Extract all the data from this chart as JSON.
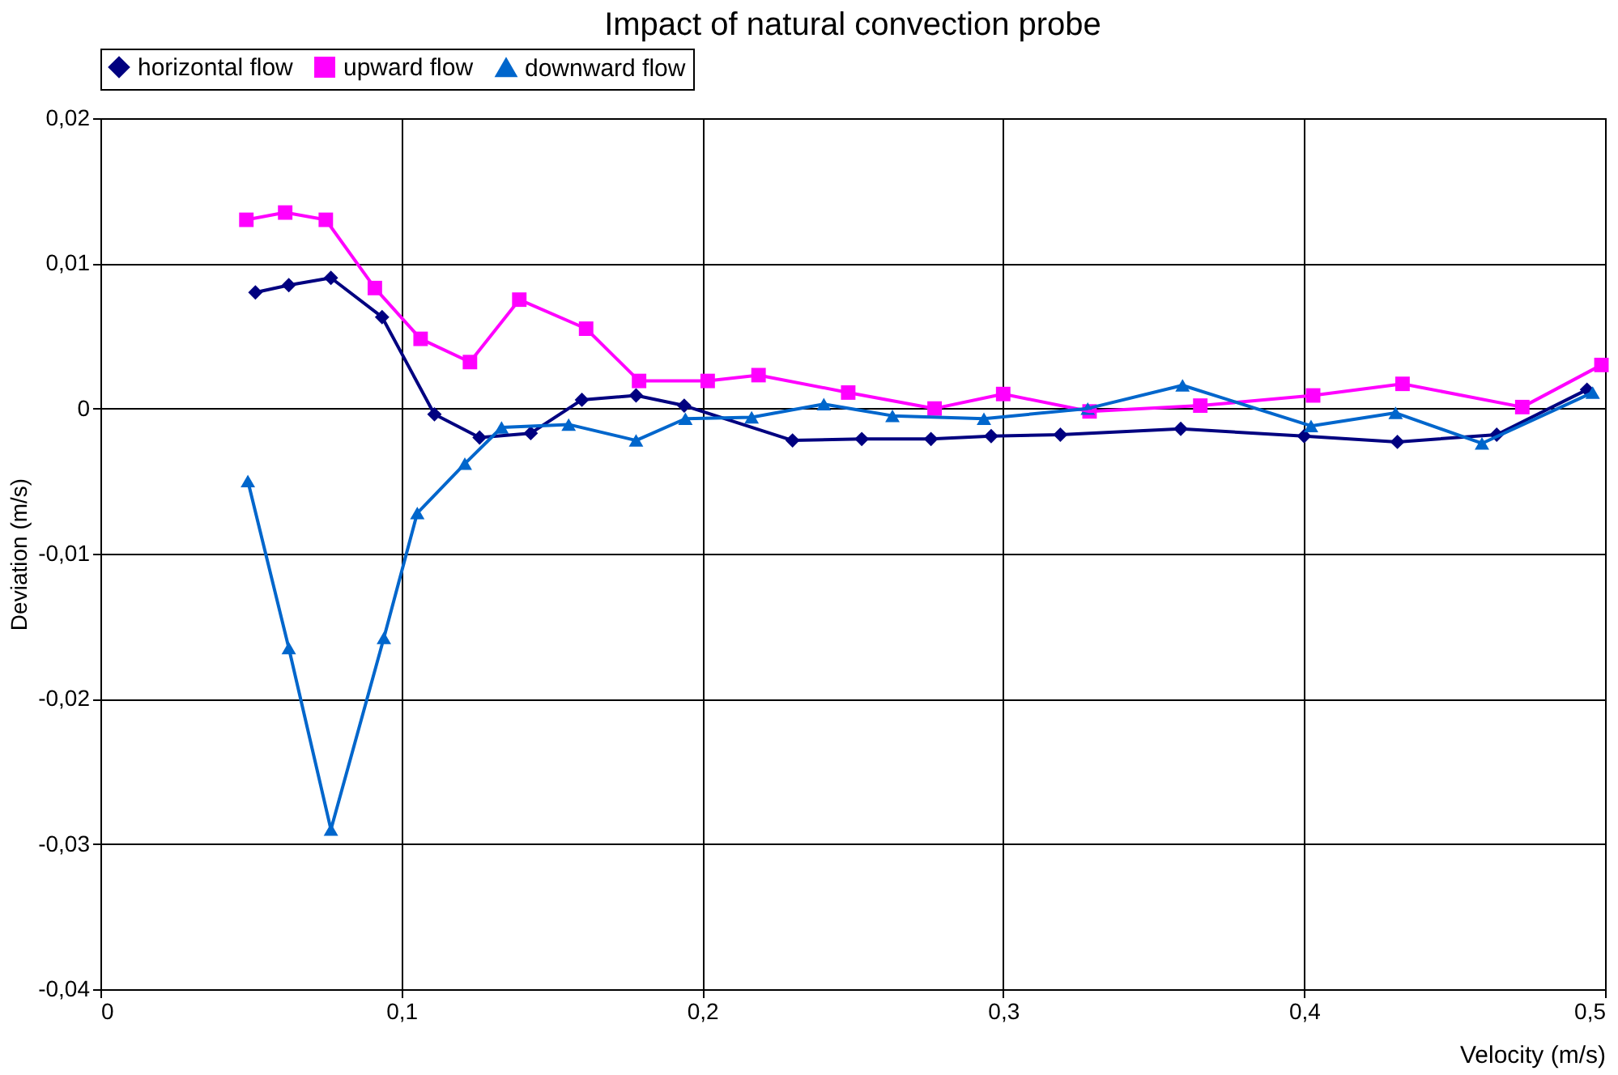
{
  "chart_data": {
    "type": "line",
    "title": "Impact of natural convection probe",
    "xlabel": "Velocity   (m/s)",
    "ylabel": "Deviation (m/s)",
    "xlim": [
      0,
      0.5
    ],
    "xticks": [
      0,
      {
        "value": 0.1,
        "label": "0,1"
      },
      {
        "value": 0.2,
        "label": "0,2"
      },
      {
        "value": 0.3,
        "label": "0,3"
      },
      {
        "value": 0.4,
        "label": "0,4"
      },
      {
        "value": 0.5,
        "label": "0,5"
      }
    ],
    "ylim": [
      -0.04,
      0.02
    ],
    "yticks": [
      {
        "value": -0.04,
        "label": "-0,04"
      },
      {
        "value": -0.03,
        "label": "-0,03"
      },
      {
        "value": -0.02,
        "label": "-0,02"
      },
      {
        "value": -0.01,
        "label": "-0,01"
      },
      0,
      {
        "value": 0.01,
        "label": "0,01"
      },
      {
        "value": 0.02,
        "label": "0,02"
      }
    ],
    "grid": true,
    "legend": "top",
    "line_style": "solid",
    "series": [
      {
        "name": "horizontal flow",
        "color": "#000080",
        "marker": "diamond",
        "x": [
          0.0515,
          0.0626,
          0.0766,
          0.0936,
          0.111,
          0.126,
          0.143,
          0.16,
          0.178,
          0.194,
          0.23,
          0.253,
          0.276,
          0.296,
          0.319,
          0.359,
          0.4,
          0.431,
          0.464,
          0.494
        ],
        "values": [
          0.008,
          0.0085,
          0.009,
          0.0063,
          -0.0004,
          -0.002,
          -0.0017,
          0.0006,
          0.0009,
          0.0002,
          -0.0022,
          -0.0021,
          -0.0021,
          -0.0019,
          -0.0018,
          -0.0014,
          -0.0019,
          -0.0023,
          -0.0018,
          0.0013
        ]
      },
      {
        "name": "upward flow",
        "color": "#ff00ff",
        "marker": "square",
        "x": [
          0.0485,
          0.0614,
          0.0749,
          0.0912,
          0.1064,
          0.1228,
          0.1392,
          0.1614,
          0.179,
          0.2018,
          0.2187,
          0.2485,
          0.2772,
          0.3,
          0.3287,
          0.3655,
          0.403,
          0.4327,
          0.4725,
          0.4988
        ],
        "values": [
          0.013,
          0.0135,
          0.013,
          0.0083,
          0.0048,
          0.0032,
          0.0075,
          0.0055,
          0.0019,
          0.0019,
          0.0023,
          0.0011,
          0.0,
          0.001,
          -0.0002,
          0.0002,
          0.0009,
          0.0017,
          0.0001,
          0.003
        ]
      },
      {
        "name": "downward flow",
        "color": "#0066cc",
        "marker": "triangle",
        "x": [
          0.049,
          0.0626,
          0.0766,
          0.0942,
          0.1053,
          0.1211,
          0.1333,
          0.1556,
          0.178,
          0.1944,
          0.2164,
          0.2404,
          0.2632,
          0.2936,
          0.3281,
          0.3596,
          0.4023,
          0.4304,
          0.4591,
          0.4959
        ],
        "values": [
          -0.005,
          -0.0165,
          -0.029,
          -0.0158,
          -0.0072,
          -0.0038,
          -0.0013,
          -0.0011,
          -0.0022,
          -0.0007,
          -0.0006,
          0.0003,
          -0.0005,
          -0.0007,
          0.0,
          0.0016,
          -0.0012,
          -0.0003,
          -0.0024,
          0.0011
        ]
      }
    ]
  }
}
